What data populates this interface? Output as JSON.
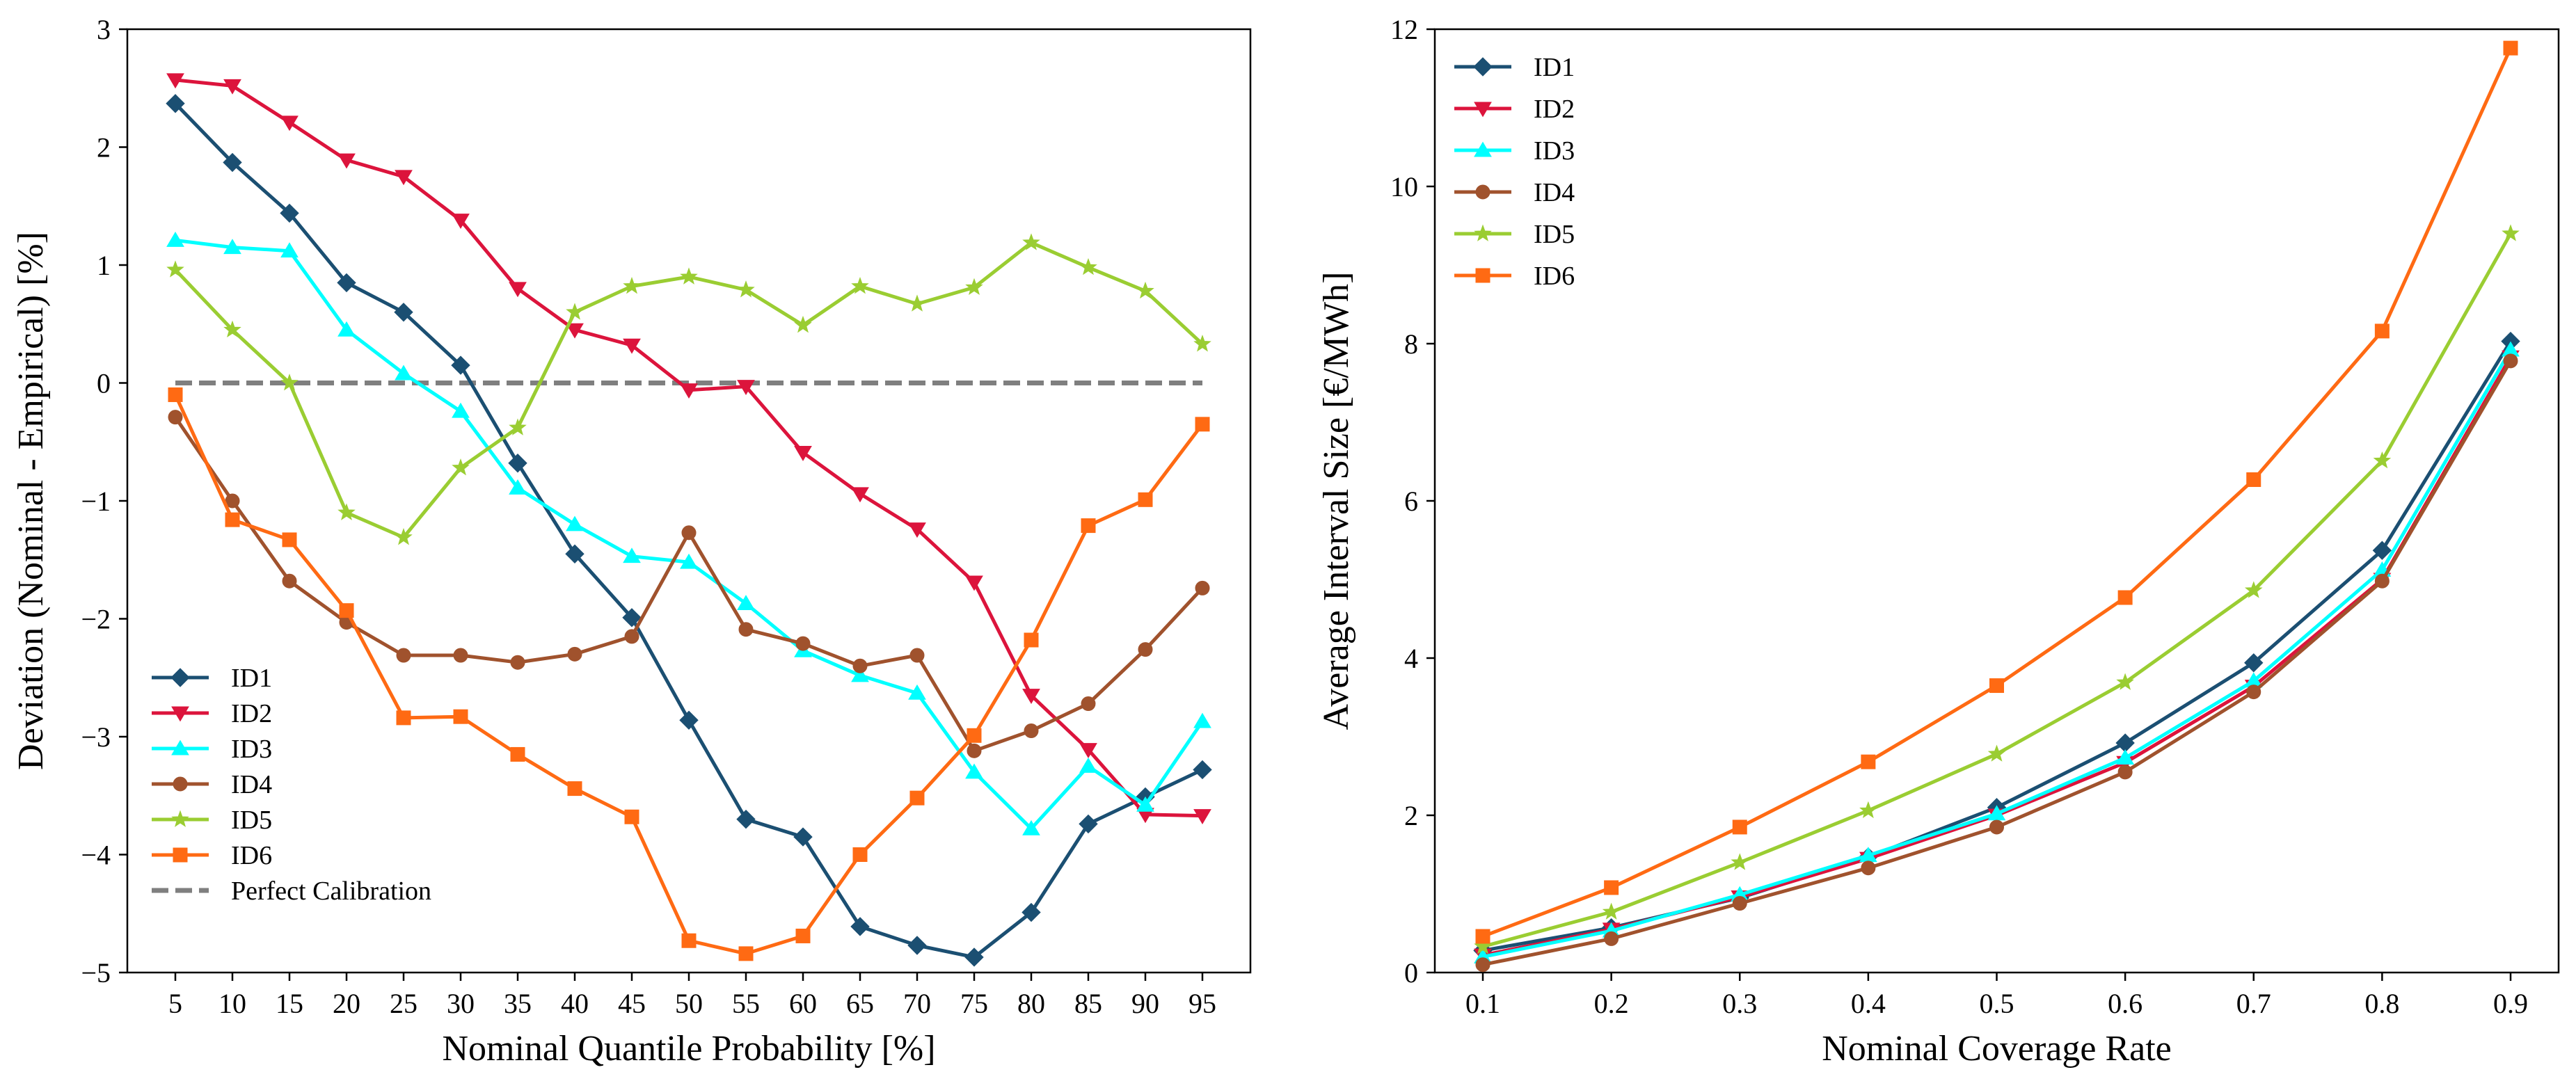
{
  "chart_data": [
    {
      "type": "line",
      "xlabel": "Nominal Quantile Probability [%]",
      "ylabel": "Deviation (Nominal - Empirical) [%]",
      "ylim": [
        -5,
        3
      ],
      "yticks": [
        -5,
        -4,
        -3,
        -2,
        -1,
        0,
        1,
        2,
        3
      ],
      "ytick_labels": [
        "−5",
        "−4",
        "−3",
        "−2",
        "−1",
        "0",
        "1",
        "2",
        "3"
      ],
      "categories": [
        "5",
        "10",
        "15",
        "20",
        "25",
        "30",
        "35",
        "40",
        "45",
        "50",
        "55",
        "60",
        "65",
        "70",
        "75",
        "80",
        "85",
        "90",
        "95"
      ],
      "legend_position": "lower-left",
      "series": [
        {
          "name": "ID1",
          "color": "#1b4f72",
          "marker": "diamond",
          "values": [
            2.37,
            1.87,
            1.44,
            0.85,
            0.6,
            0.15,
            -0.68,
            -1.45,
            -1.99,
            -2.86,
            -3.7,
            -3.85,
            -4.61,
            -4.77,
            -4.87,
            -4.49,
            -3.74,
            -3.51,
            -3.28
          ]
        },
        {
          "name": "ID2",
          "color": "#dc143c",
          "marker": "triangle-down",
          "values": [
            2.57,
            2.52,
            2.21,
            1.89,
            1.75,
            1.38,
            0.8,
            0.45,
            0.32,
            -0.06,
            -0.03,
            -0.59,
            -0.94,
            -1.24,
            -1.69,
            -2.65,
            -3.11,
            -3.66,
            -3.67
          ]
        },
        {
          "name": "ID3",
          "color": "#00ffff",
          "marker": "triangle-up",
          "values": [
            1.21,
            1.15,
            1.12,
            0.45,
            0.08,
            -0.24,
            -0.89,
            -1.2,
            -1.47,
            -1.52,
            -1.87,
            -2.27,
            -2.48,
            -2.63,
            -3.3,
            -3.78,
            -3.25,
            -3.58,
            -2.87
          ]
        },
        {
          "name": "ID4",
          "color": "#a0522d",
          "marker": "circle",
          "values": [
            -0.29,
            -1.0,
            -1.68,
            -2.03,
            -2.31,
            -2.31,
            -2.37,
            -2.3,
            -2.15,
            -1.27,
            -2.09,
            -2.21,
            -2.4,
            -2.31,
            -3.12,
            -2.95,
            -2.72,
            -2.26,
            -1.74
          ]
        },
        {
          "name": "ID5",
          "color": "#9acd32",
          "marker": "star",
          "values": [
            0.96,
            0.45,
            0.0,
            -1.1,
            -1.31,
            -0.72,
            -0.38,
            0.6,
            0.82,
            0.9,
            0.79,
            0.49,
            0.82,
            0.67,
            0.81,
            1.19,
            0.98,
            0.78,
            0.33
          ]
        },
        {
          "name": "ID6",
          "color": "#ff6a13",
          "marker": "square",
          "values": [
            -0.1,
            -1.16,
            -1.33,
            -1.93,
            -2.84,
            -2.83,
            -3.15,
            -3.44,
            -3.68,
            -4.73,
            -4.84,
            -4.69,
            -4.0,
            -3.52,
            -2.99,
            -2.18,
            -1.21,
            -0.99,
            -0.35
          ]
        }
      ],
      "reference_line": {
        "name": "Perfect Calibration",
        "color": "#7f7f7f",
        "y": 0,
        "style": "dashed"
      }
    },
    {
      "type": "line",
      "xlabel": "Nominal Coverage Rate",
      "ylabel": "Average Interval Size [€/MWh]",
      "ylim": [
        0,
        12
      ],
      "yticks": [
        0,
        2,
        4,
        6,
        8,
        10,
        12
      ],
      "ytick_labels": [
        "0",
        "2",
        "4",
        "6",
        "8",
        "10",
        "12"
      ],
      "categories": [
        "0.1",
        "0.2",
        "0.3",
        "0.4",
        "0.5",
        "0.6",
        "0.7",
        "0.8",
        "0.9"
      ],
      "legend_position": "upper-left",
      "series": [
        {
          "name": "ID1",
          "color": "#1b4f72",
          "marker": "diamond",
          "values": [
            0.28,
            0.57,
            0.95,
            1.47,
            2.1,
            2.92,
            3.94,
            5.37,
            8.03
          ]
        },
        {
          "name": "ID2",
          "color": "#dc143c",
          "marker": "triangle-down",
          "values": [
            0.22,
            0.55,
            0.96,
            1.45,
            2.0,
            2.67,
            3.64,
            5.0,
            7.83
          ]
        },
        {
          "name": "ID3",
          "color": "#00ffff",
          "marker": "triangle-up",
          "values": [
            0.2,
            0.53,
            0.99,
            1.49,
            2.02,
            2.73,
            3.71,
            5.12,
            7.92
          ]
        },
        {
          "name": "ID4",
          "color": "#a0522d",
          "marker": "circle",
          "values": [
            0.1,
            0.43,
            0.88,
            1.33,
            1.85,
            2.55,
            3.57,
            4.98,
            7.78
          ]
        },
        {
          "name": "ID5",
          "color": "#9acd32",
          "marker": "star",
          "values": [
            0.33,
            0.77,
            1.4,
            2.06,
            2.78,
            3.69,
            4.86,
            6.51,
            9.4
          ]
        },
        {
          "name": "ID6",
          "color": "#ff6a13",
          "marker": "square",
          "values": [
            0.46,
            1.08,
            1.85,
            2.68,
            3.65,
            4.77,
            6.27,
            8.16,
            11.76
          ]
        }
      ]
    }
  ]
}
